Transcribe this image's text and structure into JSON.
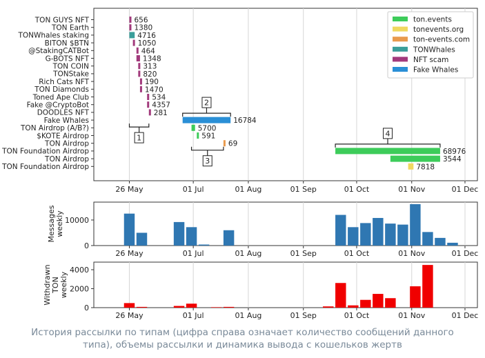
{
  "caption": {
    "line1": "История рассылки по типам (цифра справа означает количество сообщений данного",
    "line2": "типа), объемы рассылки и динамика вывода с кошельков жертв"
  },
  "chart_data": [
    {
      "type": "timeline",
      "x_axis": {
        "type": "date",
        "range": [
          "2022-05-06",
          "2022-12-08"
        ],
        "ticks": [
          {
            "date": "2022-05-26",
            "label": "26 May"
          },
          {
            "date": "2022-07-01",
            "label": "01 Jul"
          },
          {
            "date": "2022-08-01",
            "label": "01 Aug"
          },
          {
            "date": "2022-09-01",
            "label": "01 Sep"
          },
          {
            "date": "2022-10-01",
            "label": "01 Oct"
          },
          {
            "date": "2022-11-01",
            "label": "01 Nov"
          },
          {
            "date": "2022-12-01",
            "label": "01 Dec"
          }
        ]
      },
      "grid": "vertical",
      "legend": {
        "placement": "top-right",
        "entries": [
          {
            "name": "ton.events",
            "color": "#3dcc5a"
          },
          {
            "name": "tonevents.org",
            "color": "#f0d860"
          },
          {
            "name": "ton-events.com",
            "color": "#e99a4d"
          },
          {
            "name": "TONWhales",
            "color": "#3a9e9a"
          },
          {
            "name": "NFT scam",
            "color": "#a23a7c"
          },
          {
            "name": "Fake Whales",
            "color": "#2a8fd6"
          }
        ]
      },
      "rows": [
        {
          "label": "TON GUYS NFT",
          "category": "NFT scam",
          "start": "2022-05-26",
          "end": "2022-05-27",
          "count": "656"
        },
        {
          "label": "TON Earth",
          "category": "NFT scam",
          "start": "2022-05-26",
          "end": "2022-05-27",
          "count": "1380"
        },
        {
          "label": "TONWhales staking",
          "category": "TONWhales",
          "start": "2022-05-26",
          "end": "2022-05-29",
          "count": "4716"
        },
        {
          "label": "BITON $BTN",
          "category": "NFT scam",
          "start": "2022-05-28",
          "end": "2022-05-29",
          "count": "1050"
        },
        {
          "label": "@StakingCATBot",
          "category": "NFT scam",
          "start": "2022-05-30",
          "end": "2022-05-31",
          "count": "464"
        },
        {
          "label": "G-BOTS NFT",
          "category": "NFT scam",
          "start": "2022-05-30",
          "end": "2022-06-01",
          "count": "1348"
        },
        {
          "label": "TON COIN",
          "category": "NFT scam",
          "start": "2022-05-31",
          "end": "2022-06-01",
          "count": "313"
        },
        {
          "label": "TONStake",
          "category": "NFT scam",
          "start": "2022-05-31",
          "end": "2022-06-01",
          "count": "820"
        },
        {
          "label": "Rich Cats NFT",
          "category": "NFT scam",
          "start": "2022-06-01",
          "end": "2022-06-02",
          "count": "190"
        },
        {
          "label": "TON Diamonds",
          "category": "NFT scam",
          "start": "2022-06-01",
          "end": "2022-06-02",
          "count": "1470"
        },
        {
          "label": "Toned Ape Club",
          "category": "NFT scam",
          "start": "2022-06-05",
          "end": "2022-06-06",
          "count": "534"
        },
        {
          "label": "Fake @CryptoBot",
          "category": "NFT scam",
          "start": "2022-06-05",
          "end": "2022-06-06",
          "count": "4357"
        },
        {
          "label": "DOODLES NFT",
          "category": "NFT scam",
          "start": "2022-06-06",
          "end": "2022-06-07",
          "count": "281"
        },
        {
          "label": "Fake Whales",
          "category": "Fake Whales",
          "start": "2022-06-25",
          "end": "2022-07-22",
          "count": "16784"
        },
        {
          "label": "TON Airdrop (A/B?)",
          "category": "ton.events",
          "start": "2022-06-30",
          "end": "2022-07-02",
          "count": "5700"
        },
        {
          "label": "$KOTE Airdrop",
          "category": "ton.events",
          "start": "2022-07-03",
          "end": "2022-07-04",
          "count": "591"
        },
        {
          "label": "TON Airdrop",
          "category": "ton-events.com",
          "start": "2022-07-18",
          "end": "2022-07-19",
          "count": "69"
        },
        {
          "label": "TON Foundation Airdrop",
          "category": "ton.events",
          "start": "2022-09-19",
          "end": "2022-11-17",
          "count": "68976"
        },
        {
          "label": "TON Airdrop",
          "category": "ton.events",
          "start": "2022-10-20",
          "end": "2022-11-17",
          "count": "3544"
        },
        {
          "label": "TON Foundation Airdrop",
          "category": "tonevents.org",
          "start": "2022-10-30",
          "end": "2022-11-02",
          "count": "7818"
        }
      ],
      "annotations": [
        {
          "label": "1",
          "start": "2022-05-26",
          "end": "2022-06-06",
          "row": 13,
          "side": "below"
        },
        {
          "label": "2",
          "start": "2022-06-25",
          "end": "2022-07-22",
          "row": 13,
          "side": "above"
        },
        {
          "label": "3",
          "start": "2022-06-30",
          "end": "2022-07-18",
          "row": 16,
          "side": "below"
        },
        {
          "label": "4",
          "start": "2022-09-19",
          "end": "2022-11-17",
          "row": 17,
          "side": "above"
        }
      ]
    },
    {
      "type": "bar",
      "ylabel": "Messages weekly",
      "ylim": [
        0,
        17000
      ],
      "yticks": [
        0,
        10000
      ],
      "color": "#2f77b2",
      "x": [
        "2022-05-26",
        "2022-06-02",
        "2022-06-23",
        "2022-06-30",
        "2022-07-07",
        "2022-07-21",
        "2022-09-22",
        "2022-09-29",
        "2022-10-06",
        "2022-10-13",
        "2022-10-20",
        "2022-10-27",
        "2022-11-03",
        "2022-11-10",
        "2022-11-17",
        "2022-11-24"
      ],
      "values": [
        12500,
        5000,
        9200,
        7200,
        400,
        6000,
        12000,
        7200,
        8800,
        10800,
        8600,
        8200,
        16200,
        5300,
        3000,
        1100
      ]
    },
    {
      "type": "bar",
      "ylabel": "Withdrawn TON weekly",
      "ylim": [
        0,
        4800
      ],
      "yticks": [
        0,
        2000,
        4000
      ],
      "color": "#f00000",
      "x": [
        "2022-05-26",
        "2022-06-02",
        "2022-06-23",
        "2022-06-30",
        "2022-07-14",
        "2022-07-21",
        "2022-09-15",
        "2022-09-22",
        "2022-09-29",
        "2022-10-06",
        "2022-10-13",
        "2022-10-20",
        "2022-11-03",
        "2022-11-10"
      ],
      "values": [
        480,
        80,
        180,
        420,
        50,
        80,
        130,
        2600,
        240,
        820,
        1450,
        1000,
        2250,
        4500
      ]
    }
  ]
}
